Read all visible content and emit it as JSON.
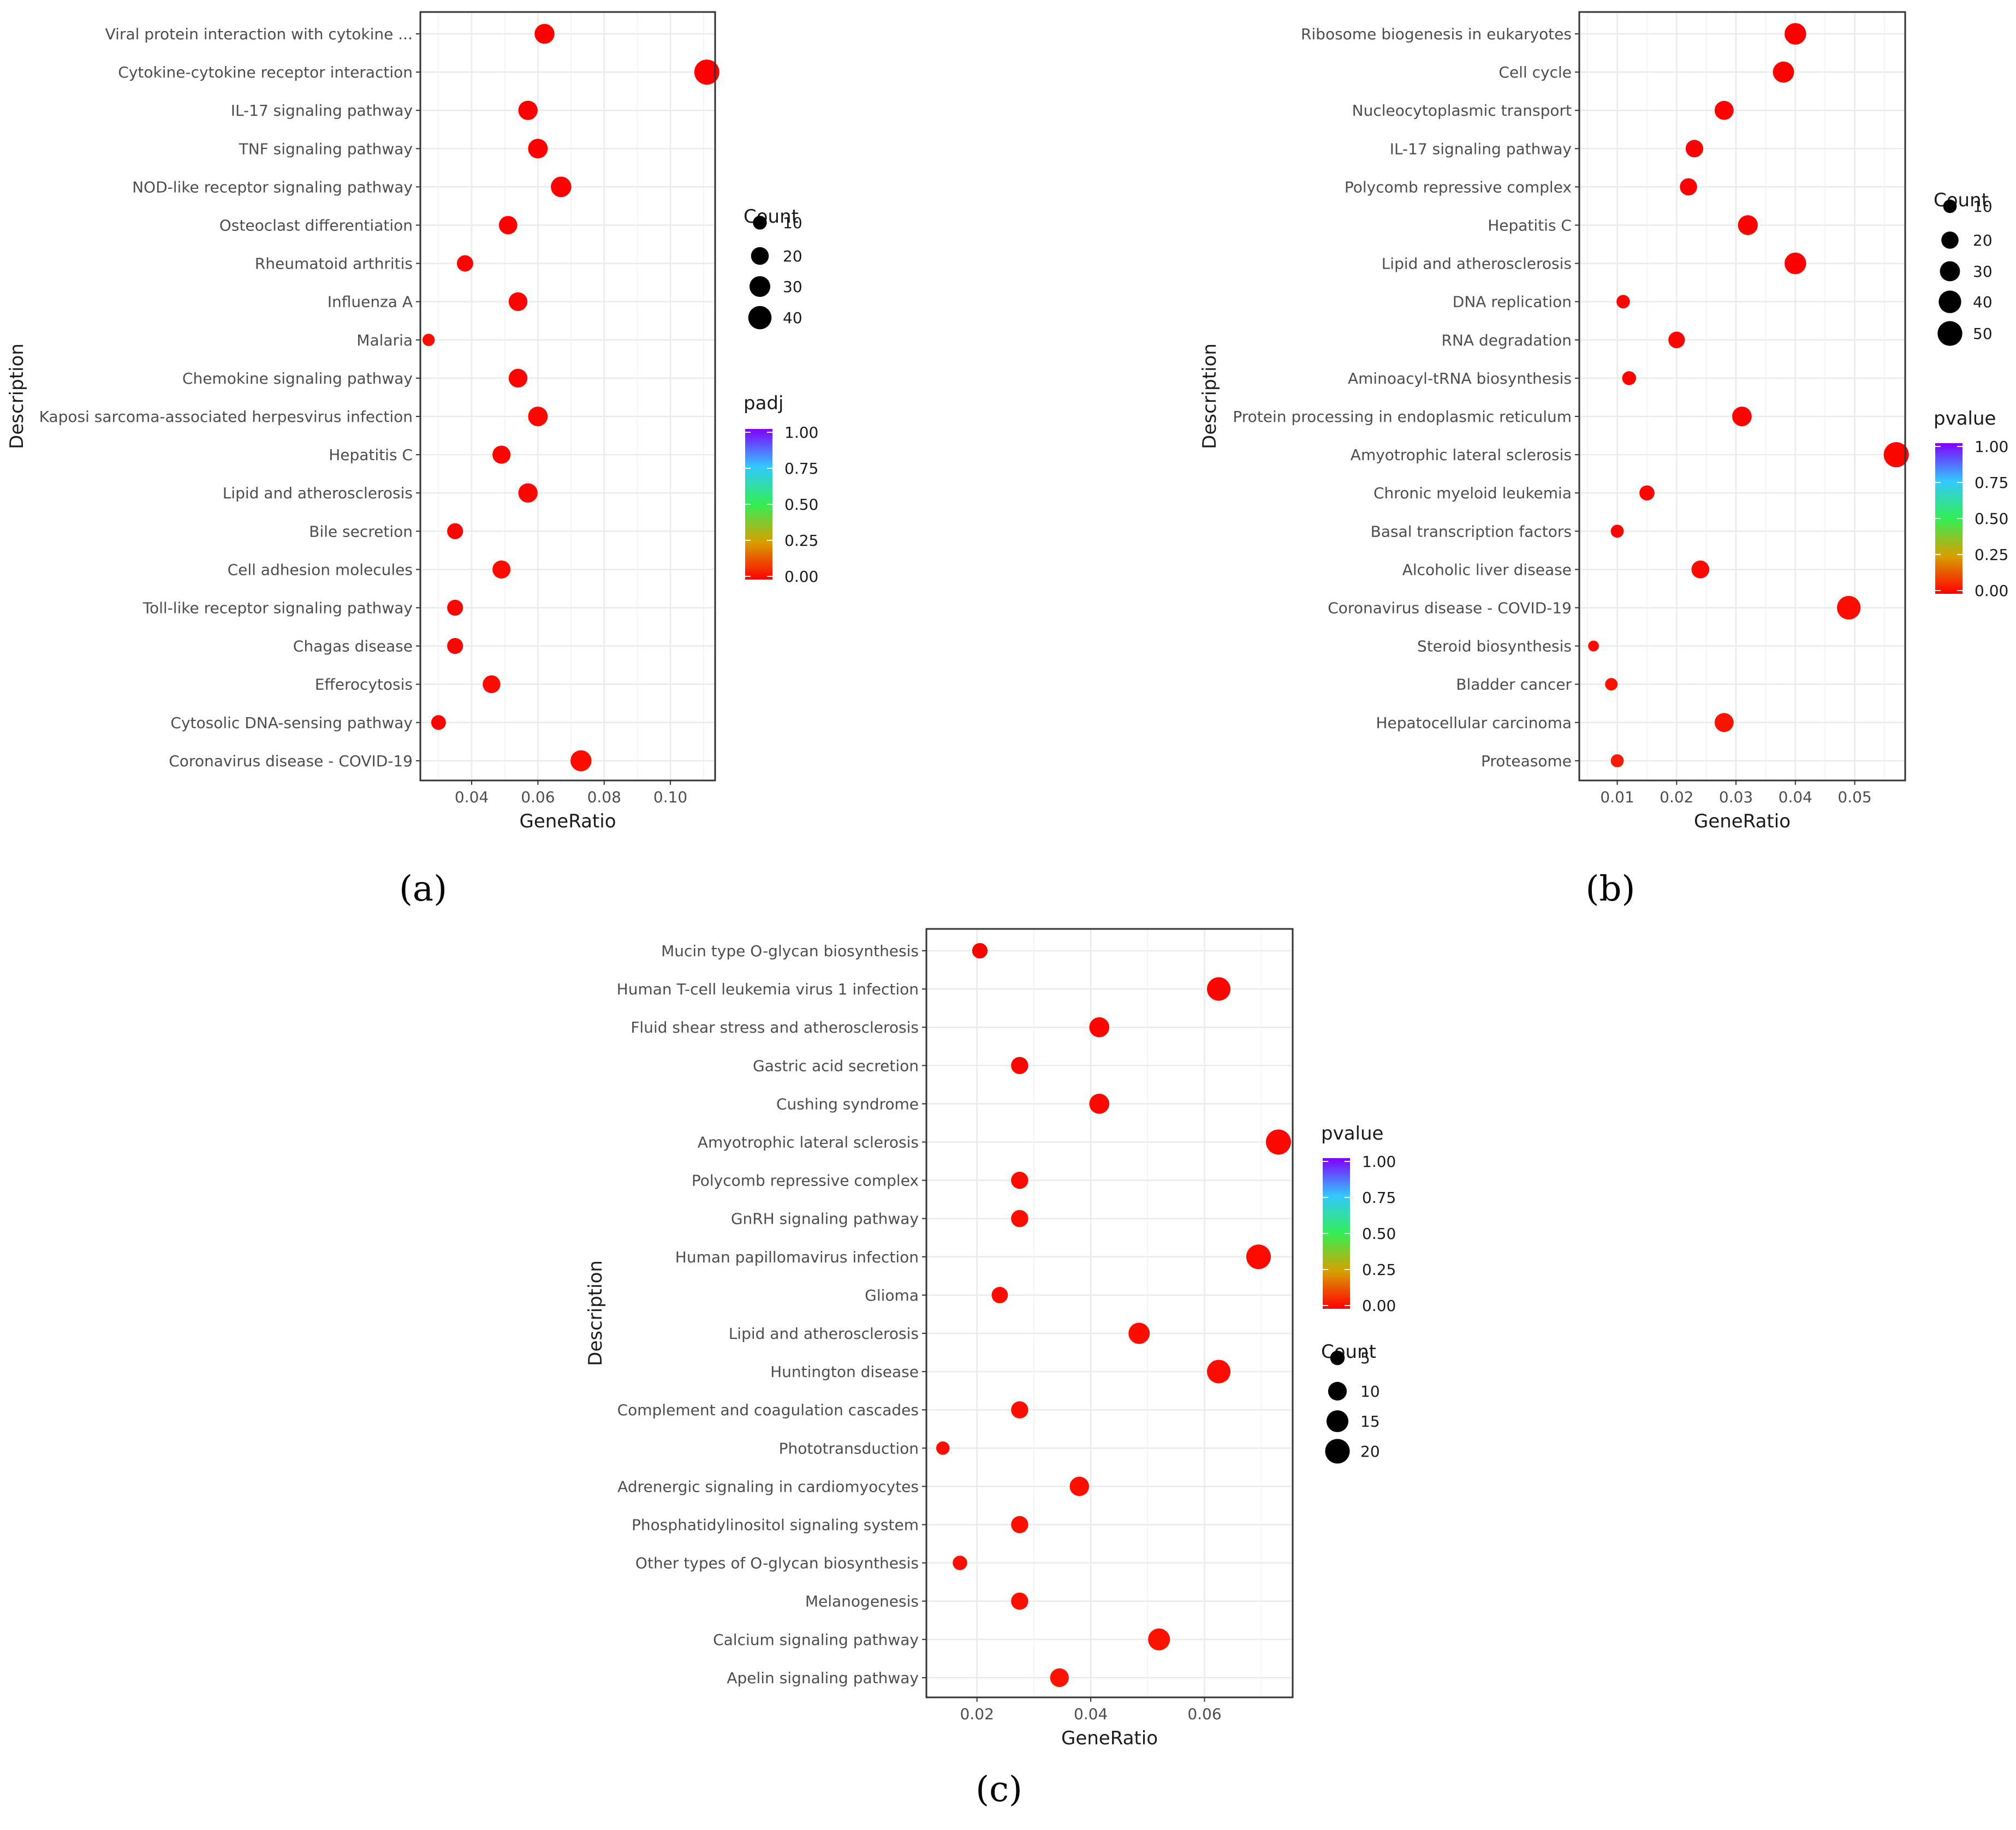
{
  "chart_data": [
    {
      "type": "scatter",
      "panel_label": "(a)",
      "xlabel": "GeneRatio",
      "ylabel": "Description",
      "xlim": [
        0.0245,
        0.1135
      ],
      "xticks": [
        0.04,
        0.06,
        0.08,
        0.1
      ],
      "xtick_labels": [
        "0.04",
        "0.06",
        "0.08",
        "0.10"
      ],
      "grid": true,
      "categories": [
        "Viral protein interaction with cytokine ...",
        "Cytokine-cytokine receptor interaction",
        "IL-17 signaling pathway",
        "TNF signaling pathway",
        "NOD-like receptor signaling pathway",
        "Osteoclast differentiation",
        "Rheumatoid arthritis",
        "Influenza A",
        "Malaria",
        "Chemokine signaling pathway",
        "Kaposi sarcoma-associated herpesvirus infection",
        "Hepatitis C",
        "Lipid and atherosclerosis",
        "Bile secretion",
        "Cell adhesion molecules",
        "Toll-like receptor signaling pathway",
        "Chagas disease",
        "Efferocytosis",
        "Cytosolic DNA-sensing pathway",
        "Coronavirus disease - COVID-19"
      ],
      "x": [
        0.062,
        0.111,
        0.057,
        0.06,
        0.067,
        0.051,
        0.038,
        0.054,
        0.027,
        0.054,
        0.06,
        0.049,
        0.057,
        0.035,
        0.049,
        0.035,
        0.035,
        0.046,
        0.03,
        0.073
      ],
      "count": [
        27,
        48,
        25,
        26,
        29,
        22,
        16,
        23,
        7,
        23,
        26,
        21,
        25,
        15,
        21,
        15,
        15,
        20,
        12,
        31
      ],
      "color_value": [
        0.001,
        0.0,
        0.0,
        0.0,
        0.003,
        0.001,
        0.005,
        0.004,
        0.02,
        0.006,
        0.012,
        0.006,
        0.01,
        0.01,
        0.015,
        0.012,
        0.008,
        0.015,
        0.01,
        0.02
      ],
      "size_legend": {
        "title": "Count",
        "values": [
          10,
          20,
          30,
          40
        ],
        "labels": [
          "10",
          "20",
          "30",
          "40"
        ]
      },
      "color_legend": {
        "title": "padj",
        "labels": [
          "1.00",
          "0.75",
          "0.50",
          "0.25",
          "0.00"
        ]
      }
    },
    {
      "type": "scatter",
      "panel_label": "(b)",
      "xlabel": "GeneRatio",
      "ylabel": "Description",
      "xlim": [
        0.0036,
        0.0585
      ],
      "xticks": [
        0.01,
        0.02,
        0.03,
        0.04,
        0.05
      ],
      "xtick_labels": [
        "0.01",
        "0.02",
        "0.03",
        "0.04",
        "0.05"
      ],
      "grid": true,
      "categories": [
        "Ribosome biogenesis in eukaryotes",
        "Cell cycle",
        "Nucleocytoplasmic transport",
        "IL-17 signaling pathway",
        "Polycomb repressive complex",
        "Hepatitis C",
        "Lipid and atherosclerosis",
        "DNA replication",
        "RNA degradation",
        "Aminoacyl-tRNA biosynthesis",
        "Protein processing in endoplasmic reticulum",
        "Amyotrophic lateral sclerosis",
        "Chronic myeloid leukemia",
        "Basal transcription factors",
        "Alcoholic liver disease",
        "Coronavirus disease - COVID-19",
        "Steroid biosynthesis",
        "Bladder cancer",
        "Hepatocellular carcinoma",
        "Proteasome"
      ],
      "x": [
        0.04,
        0.038,
        0.028,
        0.023,
        0.022,
        0.032,
        0.04,
        0.011,
        0.02,
        0.012,
        0.031,
        0.057,
        0.015,
        0.01,
        0.024,
        0.049,
        0.006,
        0.009,
        0.028,
        0.01
      ],
      "count": [
        36,
        34,
        26,
        21,
        20,
        29,
        36,
        10,
        18,
        11,
        28,
        52,
        14,
        9,
        22,
        45,
        5,
        8,
        26,
        9
      ],
      "color_value": [
        0.0,
        0.0,
        0.001,
        0.002,
        0.002,
        0.003,
        0.002,
        0.004,
        0.006,
        0.006,
        0.005,
        0.009,
        0.008,
        0.01,
        0.012,
        0.02,
        0.015,
        0.03,
        0.03,
        0.04
      ],
      "size_legend": {
        "title": "Count",
        "values": [
          10,
          20,
          30,
          40,
          50
        ],
        "labels": [
          "10",
          "20",
          "30",
          "40",
          "50"
        ]
      },
      "color_legend": {
        "title": "pvalue",
        "labels": [
          "1.00",
          "0.75",
          "0.50",
          "0.25",
          "0.00"
        ]
      }
    },
    {
      "type": "scatter",
      "panel_label": "(c)",
      "xlabel": "GeneRatio",
      "ylabel": "Description",
      "xlim": [
        0.0111,
        0.0755
      ],
      "xticks": [
        0.02,
        0.04,
        0.06
      ],
      "xtick_labels": [
        "0.02",
        "0.04",
        "0.06"
      ],
      "grid": true,
      "categories": [
        "Mucin type O-glycan biosynthesis",
        "Human T-cell leukemia virus 1 infection",
        "Fluid shear stress and atherosclerosis",
        "Gastric acid secretion",
        "Cushing syndrome",
        "Amyotrophic lateral sclerosis",
        "Polycomb repressive complex",
        "GnRH signaling pathway",
        "Human papillomavirus infection",
        "Glioma",
        "Lipid and atherosclerosis",
        "Huntington disease",
        "Complement and coagulation cascades",
        "Phototransduction",
        "Adrenergic signaling in cardiomyocytes",
        "Phosphatidylinositol signaling system",
        "Other types of O-glycan biosynthesis",
        "Melanogenesis",
        "Calcium signaling pathway",
        "Apelin signaling pathway"
      ],
      "x": [
        0.0205,
        0.0625,
        0.0415,
        0.0275,
        0.0415,
        0.073,
        0.0275,
        0.0275,
        0.0695,
        0.024,
        0.0485,
        0.0625,
        0.0275,
        0.014,
        0.038,
        0.0275,
        0.017,
        0.0275,
        0.052,
        0.0345
      ],
      "count": [
        6,
        18,
        12,
        8,
        12,
        21,
        8,
        8,
        20,
        7,
        14,
        18,
        8,
        4,
        11,
        8,
        5,
        8,
        15,
        10
      ],
      "color_value": [
        0.002,
        0.01,
        0.01,
        0.01,
        0.012,
        0.012,
        0.015,
        0.015,
        0.015,
        0.02,
        0.02,
        0.02,
        0.02,
        0.02,
        0.025,
        0.025,
        0.025,
        0.025,
        0.03,
        0.03
      ],
      "size_legend": {
        "title": "Count",
        "values": [
          5,
          10,
          15,
          20
        ],
        "labels": [
          "5",
          "10",
          "15",
          "20"
        ]
      },
      "color_legend": {
        "title": "pvalue",
        "labels": [
          "1.00",
          "0.75",
          "0.50",
          "0.25",
          "0.00"
        ]
      }
    }
  ]
}
